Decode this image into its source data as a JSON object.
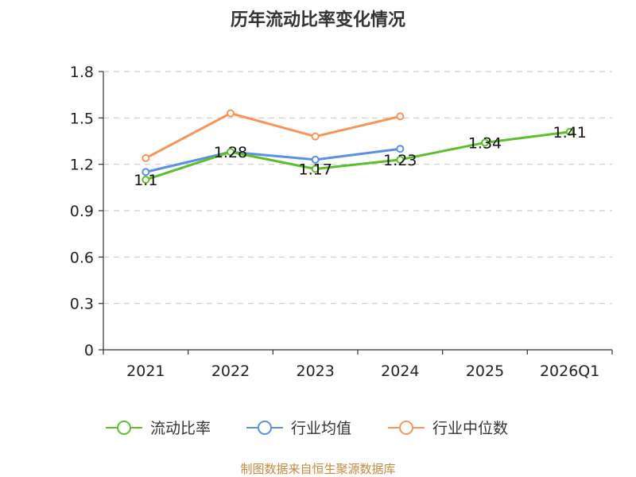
{
  "chart_data": {
    "type": "line",
    "title": "历年流动比率变化情况",
    "categories": [
      "2021",
      "2022",
      "2023",
      "2024",
      "2025",
      "2026Q1"
    ],
    "ylim": [
      0,
      1.8
    ],
    "yticks": [
      "0",
      "0.3",
      "0.6",
      "0.9",
      "1.2",
      "1.5",
      "1.8"
    ],
    "grid": true,
    "legend_position": "bottom",
    "series": [
      {
        "name": "流动比率",
        "color": "#5cbf2a",
        "values": [
          1.1,
          1.28,
          1.17,
          1.23,
          1.34,
          1.41
        ],
        "labels": [
          "1.1",
          "1.28",
          "1.17",
          "1.23",
          "1.34",
          "1.41"
        ],
        "show_labels": true
      },
      {
        "name": "行业均值",
        "color": "#5b8fe0",
        "values": [
          1.15,
          1.28,
          1.23,
          1.3,
          null,
          null
        ],
        "show_labels": false
      },
      {
        "name": "行业中位数",
        "color": "#f5955a",
        "values": [
          1.24,
          1.53,
          1.38,
          1.51,
          null,
          null
        ],
        "show_labels": false
      }
    ]
  },
  "footer": {
    "source": "制图数据来自恒生聚源数据库"
  }
}
